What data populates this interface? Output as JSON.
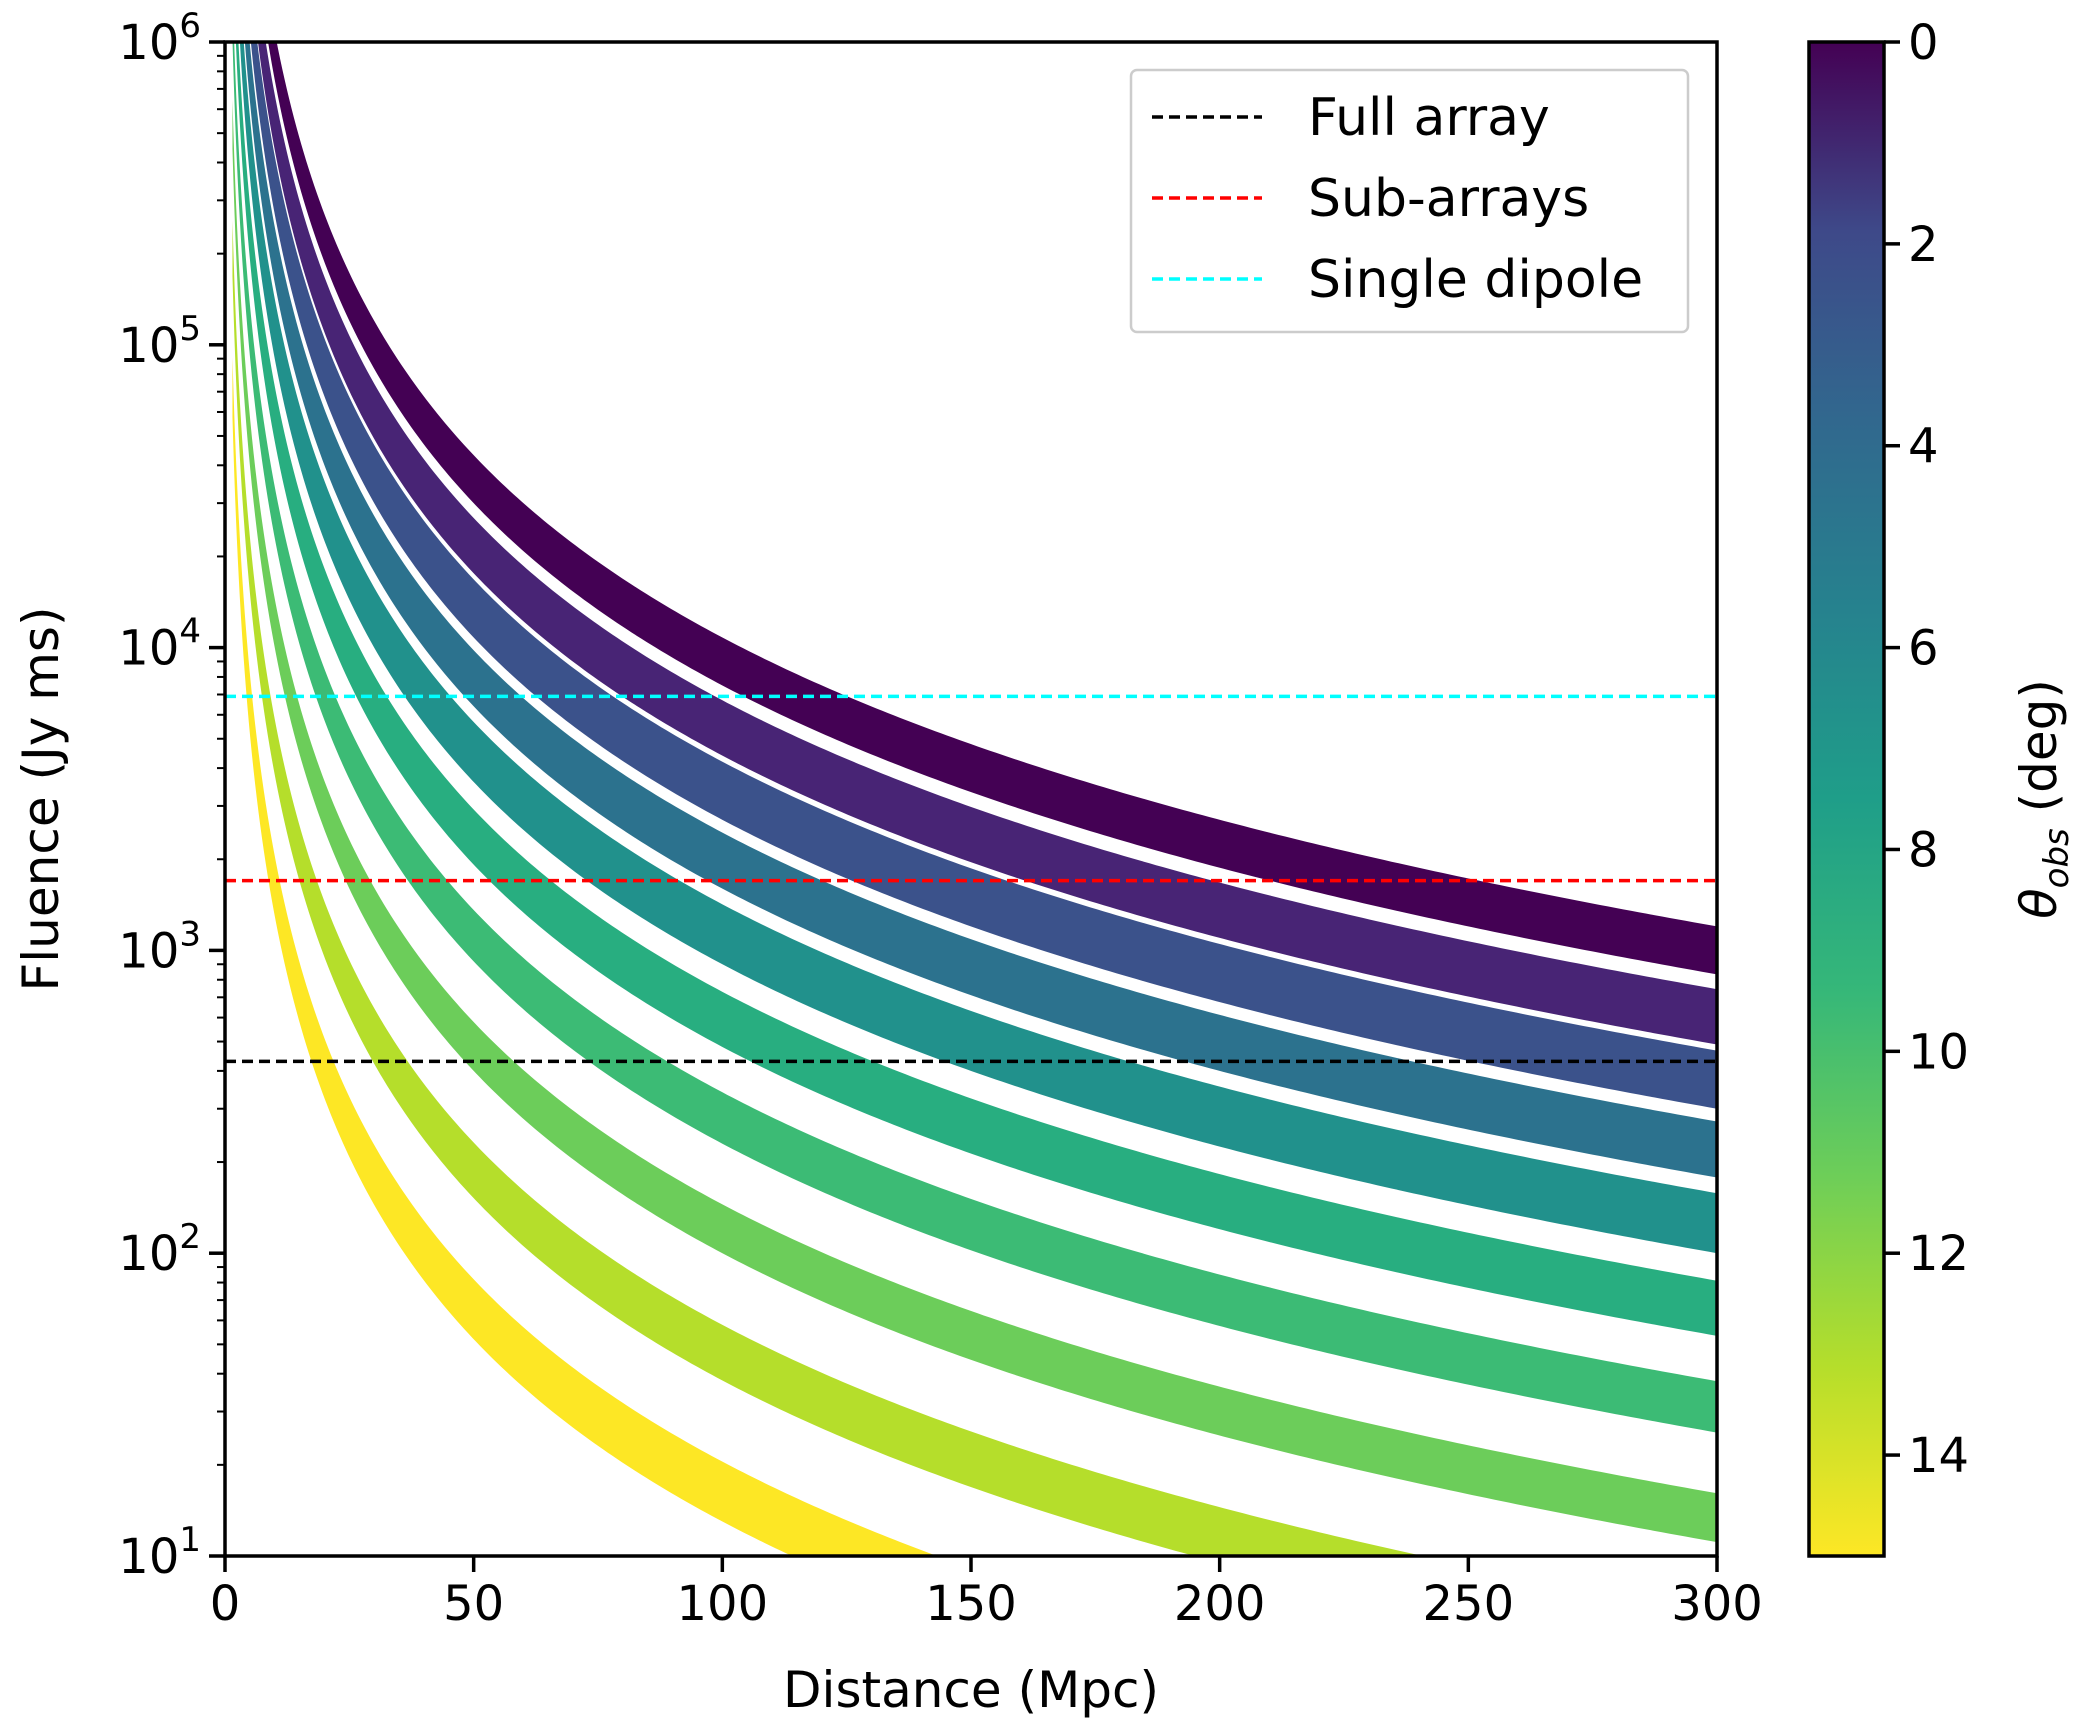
{
  "chart_data": {
    "type": "area",
    "title": "",
    "xlabel": "Distance (Mpc)",
    "ylabel": "Fluence (Jy ms)",
    "xlim": [
      0,
      300
    ],
    "ylim": [
      10,
      1000000
    ],
    "yscale": "log",
    "xticks": [
      "0",
      "50",
      "100",
      "150",
      "200",
      "250",
      "300"
    ],
    "ytick_bases": [
      "10",
      "10",
      "10",
      "10",
      "10",
      "10"
    ],
    "ytick_exponents": [
      "1",
      "2",
      "3",
      "4",
      "5",
      "6"
    ],
    "colorbar": {
      "label_symbol": "θ",
      "label_sub": "obs",
      "label_unit": " (deg)",
      "range": [
        0,
        15
      ],
      "ticks": [
        "0",
        "2",
        "4",
        "6",
        "8",
        "10",
        "12",
        "14"
      ],
      "cmap": "viridis_r"
    },
    "band_model": "F(d) = A / d^2 (fluence in Jy ms, d in Mpc); each band spans A_low..A_high",
    "bands": [
      {
        "theta_deg": 0,
        "A_low": 75000000.0,
        "A_high": 108000000.0,
        "color": "#440154"
      },
      {
        "theta_deg": 1.5,
        "A_low": 44000000.0,
        "A_high": 67000000.0,
        "color": "#482475"
      },
      {
        "theta_deg": 3,
        "A_low": 27000000.0,
        "A_high": 42000000.0,
        "color": "#3b528b"
      },
      {
        "theta_deg": 5,
        "A_low": 16000000.0,
        "A_high": 24500000.0,
        "color": "#2c728e"
      },
      {
        "theta_deg": 7,
        "A_low": 9000000.0,
        "A_high": 14200000.0,
        "color": "#21918c"
      },
      {
        "theta_deg": 9,
        "A_low": 4800000.0,
        "A_high": 7300000.0,
        "color": "#28ae80"
      },
      {
        "theta_deg": 10.5,
        "A_low": 2300000.0,
        "A_high": 3400000.0,
        "color": "#3cbb75"
      },
      {
        "theta_deg": 12,
        "A_low": 1000000.0,
        "A_high": 1450000.0,
        "color": "#6ccd5a"
      },
      {
        "theta_deg": 13.5,
        "A_low": 380000.0,
        "A_high": 580000.0,
        "color": "#b5de2b"
      },
      {
        "theta_deg": 15,
        "A_low": 130000.0,
        "A_high": 205000.0,
        "color": "#fde725"
      }
    ],
    "thresholds": [
      {
        "name": "Full array",
        "value": 430,
        "color": "#000000"
      },
      {
        "name": "Sub-arrays",
        "value": 1700,
        "color": "#ff0000"
      },
      {
        "name": "Single dipole",
        "value": 6900,
        "color": "#00ffff"
      }
    ],
    "legend_position": "top-right"
  }
}
